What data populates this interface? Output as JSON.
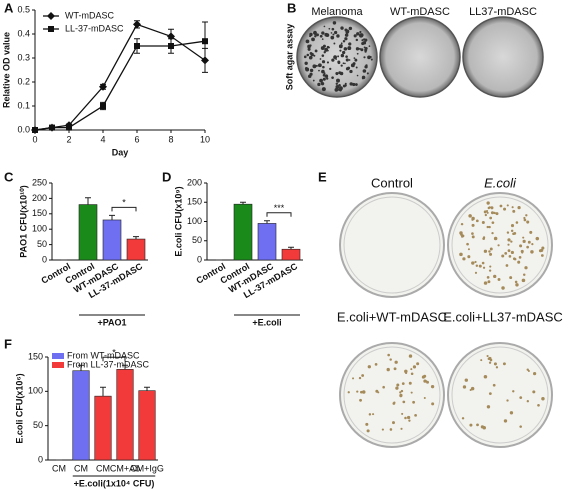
{
  "panels": {
    "letters": [
      "A",
      "B",
      "C",
      "D",
      "E",
      "F"
    ],
    "soft_agar": {
      "title": "Soft agar assay",
      "plates": [
        "Melanoma",
        "WT-mDASC",
        "LL37-mDASC"
      ]
    },
    "plates": [
      "Control",
      "E.coli",
      "E.coli+WT-mDASC",
      "E.coli+LL37-mDASC"
    ]
  },
  "chart_data": [
    {
      "type": "line",
      "y_label": "Relative OD value",
      "x_label": "Day",
      "xlim": [
        0,
        10
      ],
      "xticks": [
        0,
        2,
        4,
        6,
        8,
        10
      ],
      "ylim": [
        0,
        0.5
      ],
      "yticks": [
        {
          "value": 0,
          "label": "0.0"
        },
        0.1,
        0.2,
        0.3,
        0.4,
        0.5
      ],
      "legend": "top-left",
      "x": [
        0,
        1,
        2,
        4,
        6,
        8,
        10
      ],
      "series": [
        {
          "name": "WT-mDASC",
          "color": "#111111",
          "marker": "diamond",
          "values": [
            0,
            0.01,
            0.02,
            0.18,
            0.44,
            0.39,
            0.29
          ],
          "errors": [
            0,
            0.005,
            0.005,
            0.01,
            0.015,
            0.03,
            0.05
          ]
        },
        {
          "name": "LL-37-mDASC",
          "color": "#111111",
          "marker": "square",
          "values": [
            0,
            0.01,
            0.01,
            0.1,
            0.35,
            0.35,
            0.37
          ],
          "errors": [
            0,
            0.005,
            0.005,
            0.015,
            0.03,
            0.03,
            0.08
          ]
        }
      ]
    },
    {
      "type": "bar",
      "y_label": "PAO1 CFU(x10¹⁰)",
      "group_label": "+PAO1",
      "significance": "*",
      "categories": [
        "Control",
        "Control",
        "WT-mDASC",
        "LL-37-mDASC"
      ],
      "values": [
        0,
        180,
        130,
        68
      ],
      "errors": [
        0,
        22,
        15,
        8
      ],
      "colors": [
        "#ffffff",
        "#1a8a1a",
        "#6f6ff2",
        "#f23a3a"
      ],
      "ylim": [
        0,
        250
      ],
      "yticks": [
        0,
        50,
        100,
        150,
        200,
        250
      ]
    },
    {
      "type": "bar",
      "y_label": "E.coli CFU(x10⁹)",
      "group_label": "+E.coli",
      "significance": "***",
      "categories": [
        "Control",
        "Control",
        "WT-mDASC",
        "LL-37-mDASC"
      ],
      "values": [
        0,
        145,
        95,
        28
      ],
      "errors": [
        0,
        5,
        7,
        5
      ],
      "colors": [
        "#ffffff",
        "#1a8a1a",
        "#6f6ff2",
        "#f23a3a"
      ],
      "ylim": [
        0,
        200
      ],
      "yticks": [
        0,
        50,
        100,
        150,
        200
      ]
    },
    {
      "type": "bar",
      "y_label": "E.coli CFU(x10⁶)",
      "group_label": "+E.coli(1x10⁴ CFU)",
      "significance": "*",
      "categories": [
        "CM",
        "CM",
        "CM",
        "CM+Ab",
        "CM+IgG"
      ],
      "values": [
        0,
        130,
        93,
        132,
        101
      ],
      "errors": [
        0,
        8,
        13,
        6,
        5
      ],
      "colors": [
        "#ffffff",
        "#6f6ff2",
        "#f23a3a",
        "#f23a3a",
        "#f23a3a"
      ],
      "ylim": [
        0,
        150
      ],
      "yticks": [
        0,
        50,
        100,
        150
      ],
      "legend_entries": [
        {
          "name": "From WT-mDASC",
          "color": "#6f6ff2"
        },
        {
          "name": "From LL-37-mDASC",
          "color": "#f23a3a"
        }
      ]
    }
  ]
}
